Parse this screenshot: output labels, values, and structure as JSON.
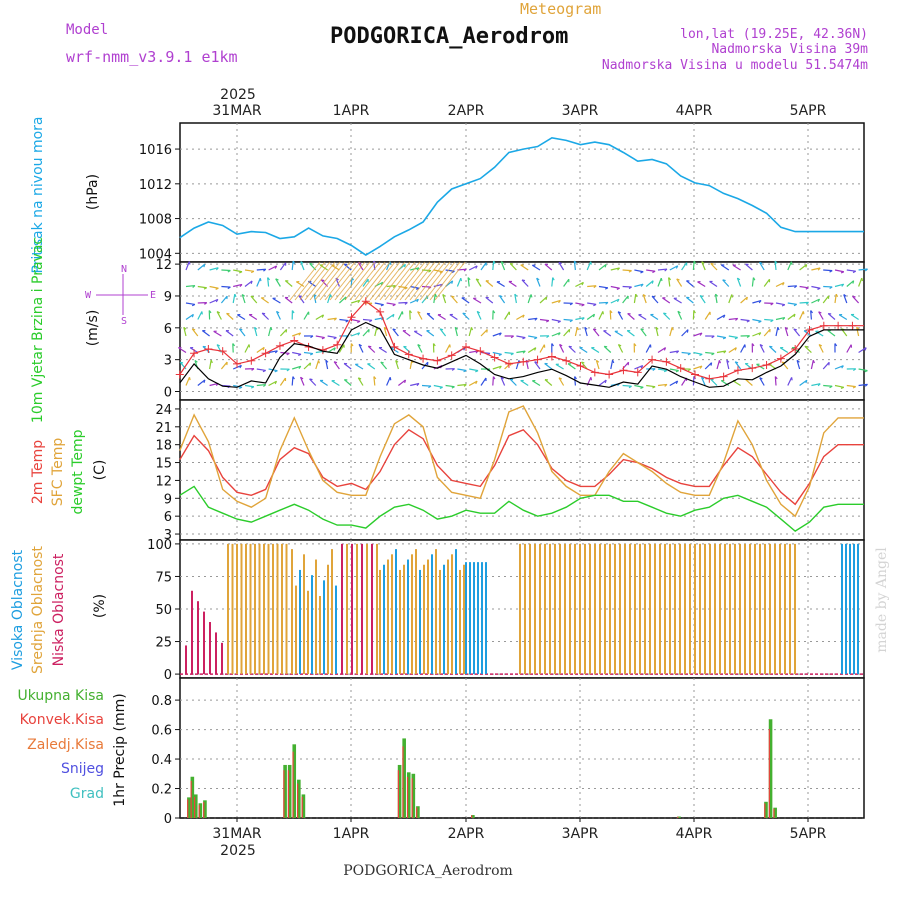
{
  "header": {
    "model_label": "Model",
    "model_name": "wrf-nmm_v3.9.1 e1km",
    "chart_type_label": "Meteogram",
    "station_name": "PODGORICA_Aerodrom",
    "coords": "lon,lat (19.25E, 42.36N)",
    "elevation": "Nadmorska Visina 39m",
    "model_elevation": "Nadmorska Visina u modelu 51.5474m",
    "footer_station": "PODGORICA_Aerodrom",
    "credit": "made by Angel"
  },
  "colors": {
    "pressure": "#1ba8e6",
    "wind_speed": "#000000",
    "gust": "#e8333a",
    "t2m": "#e8433d",
    "tsfc": "#e0a43a",
    "dewpoint": "#2bcc2b",
    "cloud_high": "#1e9ee0",
    "cloud_mid": "#e0a43a",
    "cloud_low": "#cc2060",
    "precip_total": "#44b030",
    "precip_conv": "#e8433d",
    "precip_frz": "#e87a3a",
    "precip_snow": "#5050e0",
    "precip_grad": "#40c0c0",
    "legend_purple": "#b040d0"
  },
  "chart_data": [
    {
      "type": "line",
      "panel": "pressure",
      "ylabel_left": "Pritisak na nivou mora",
      "ylabel_right": "(hPa)",
      "ylim": [
        1003,
        1019
      ],
      "yticks": [
        1004,
        1008,
        1012,
        1016
      ],
      "x_days": [
        0,
        0.125,
        0.25,
        0.375,
        0.5,
        0.625,
        0.75,
        0.875,
        1.0,
        1.125,
        1.25,
        1.375,
        1.5,
        1.625,
        1.75,
        1.875,
        2.0,
        2.125,
        2.25,
        2.375,
        2.5,
        2.625,
        2.75,
        2.875,
        3.0,
        3.125,
        3.25,
        3.375,
        3.5,
        3.625,
        3.75,
        3.875,
        4.0,
        4.125,
        4.25,
        4.375,
        4.5,
        4.625,
        4.75,
        4.875,
        5.0,
        5.125,
        5.25,
        5.375,
        5.5,
        5.625,
        5.75,
        5.875,
        6.0,
        6.125
      ],
      "series": [
        {
          "name": "",
          "values": [
            1005.8,
            1006.9,
            1007.6,
            1007.2,
            1006.2,
            1006.5,
            1006.4,
            1005.7,
            1005.9,
            1006.9,
            1006.0,
            1005.7,
            1004.9,
            1003.8,
            1004.8,
            1005.9,
            1006.7,
            1007.6,
            1009.9,
            1011.4,
            1012.0,
            1012.6,
            1013.9,
            1015.6,
            1016.0,
            1016.3,
            1017.3,
            1017.0,
            1016.5,
            1016.8,
            1016.5,
            1015.6,
            1014.6,
            1014.8,
            1014.3,
            1012.9,
            1012.1,
            1011.8,
            1010.9,
            1010.3,
            1009.5,
            1008.6,
            1007.0,
            1006.5,
            1006.5,
            1006.5,
            1006.5,
            1006.5,
            1006.5,
            1006.5
          ]
        }
      ]
    },
    {
      "type": "line",
      "panel": "wind",
      "ylabel_left": "10m Vjetar Brzina i Pravac",
      "ylabel_right": "(m/s)",
      "compass_labels": {
        "n": "N",
        "s": "S",
        "e": "E",
        "w": "W"
      },
      "ylim": [
        -0.8,
        12.2
      ],
      "yticks": [
        0,
        3,
        6,
        9,
        12
      ],
      "x_days": [
        0,
        0.125,
        0.25,
        0.375,
        0.5,
        0.625,
        0.75,
        0.875,
        1.0,
        1.125,
        1.25,
        1.375,
        1.5,
        1.625,
        1.75,
        1.875,
        2.0,
        2.125,
        2.25,
        2.375,
        2.5,
        2.625,
        2.75,
        2.875,
        3.0,
        3.125,
        3.25,
        3.375,
        3.5,
        3.625,
        3.75,
        3.875,
        4.0,
        4.125,
        4.25,
        4.375,
        4.5,
        4.625,
        4.75,
        4.875,
        5.0,
        5.125,
        5.25,
        5.375,
        5.5,
        5.625,
        5.75,
        5.875,
        6.0
      ],
      "series": [
        {
          "name": "",
          "values": [
            0.8,
            2.6,
            1.2,
            0.5,
            0.4,
            1.0,
            0.8,
            3.2,
            4.5,
            4.3,
            3.8,
            3.6,
            5.8,
            6.5,
            5.9,
            3.5,
            3.0,
            2.5,
            2.2,
            2.8,
            3.4,
            2.6,
            1.6,
            1.2,
            1.4,
            1.8,
            2.1,
            1.5,
            0.8,
            0.6,
            0.4,
            0.9,
            0.7,
            2.4,
            2.1,
            1.4,
            0.9,
            0.4,
            0.5,
            1.2,
            1.1,
            1.8,
            2.4,
            3.5,
            5.2,
            5.8,
            5.8,
            5.8,
            5.8
          ]
        },
        {
          "name": "",
          "values": [
            1.6,
            3.6,
            4.0,
            3.8,
            2.6,
            2.9,
            3.6,
            4.3,
            4.8,
            4.2,
            3.9,
            4.4,
            7.0,
            8.5,
            7.5,
            4.2,
            3.5,
            3.1,
            2.9,
            3.4,
            4.2,
            3.8,
            3.2,
            2.6,
            2.8,
            3.0,
            3.3,
            2.9,
            2.4,
            1.8,
            1.6,
            2.0,
            1.8,
            3.0,
            2.8,
            2.2,
            1.6,
            1.2,
            1.4,
            2.0,
            2.2,
            2.5,
            3.1,
            4.0,
            5.8,
            6.2,
            6.2,
            6.2,
            6.2
          ]
        }
      ]
    },
    {
      "type": "line",
      "panel": "temperature",
      "ylabel_left": [
        "2m Temp",
        "SFC Temp",
        "dewpt Temp"
      ],
      "ylabel_right": "(C)",
      "ylim": [
        2,
        25.5
      ],
      "yticks": [
        3,
        6,
        9,
        12,
        15,
        18,
        21,
        24
      ],
      "x_days": [
        0,
        0.125,
        0.25,
        0.375,
        0.5,
        0.625,
        0.75,
        0.875,
        1.0,
        1.125,
        1.25,
        1.375,
        1.5,
        1.625,
        1.75,
        1.875,
        2.0,
        2.125,
        2.25,
        2.375,
        2.5,
        2.625,
        2.75,
        2.875,
        3.0,
        3.125,
        3.25,
        3.375,
        3.5,
        3.625,
        3.75,
        3.875,
        4.0,
        4.125,
        4.25,
        4.375,
        4.5,
        4.625,
        4.75,
        4.875,
        5.0,
        5.125,
        5.25,
        5.375,
        5.5,
        5.625,
        5.75,
        5.875,
        6.0,
        6.125
      ],
      "series": [
        {
          "name": "",
          "values": [
            15.5,
            19.5,
            17.0,
            12.5,
            10.0,
            9.5,
            10.5,
            15.5,
            17.5,
            16.5,
            12.5,
            11.0,
            11.5,
            10.5,
            13.5,
            18.0,
            20.5,
            19.0,
            14.5,
            12.0,
            11.5,
            11.0,
            14.5,
            19.5,
            20.5,
            18.0,
            14.0,
            12.0,
            11.0,
            11.0,
            13.0,
            15.5,
            15.0,
            14.0,
            12.5,
            11.5,
            11.0,
            11.0,
            14.5,
            17.5,
            16.0,
            13.0,
            10.0,
            8.0,
            11.5,
            16.0,
            18.0,
            18.0,
            18.0,
            18.0
          ]
        },
        {
          "name": "",
          "values": [
            17.0,
            23.0,
            18.5,
            10.5,
            8.5,
            7.5,
            9.0,
            17.0,
            22.5,
            17.0,
            12.0,
            10.0,
            9.5,
            9.5,
            16.0,
            21.5,
            23.0,
            21.0,
            12.5,
            10.0,
            9.5,
            9.0,
            15.5,
            23.5,
            24.5,
            20.0,
            13.5,
            11.0,
            9.5,
            9.5,
            13.5,
            16.5,
            15.0,
            13.5,
            11.5,
            10.0,
            9.5,
            9.5,
            15.0,
            22.0,
            18.0,
            12.0,
            8.0,
            6.0,
            11.0,
            20.0,
            22.5,
            22.5,
            22.5,
            22.5
          ]
        },
        {
          "name": "",
          "values": [
            9.5,
            11.0,
            7.5,
            6.5,
            5.5,
            5.0,
            6.0,
            7.0,
            8.0,
            7.0,
            5.5,
            4.5,
            4.5,
            4.0,
            6.0,
            7.5,
            8.0,
            7.0,
            5.5,
            6.0,
            7.0,
            6.5,
            6.5,
            8.5,
            7.0,
            6.0,
            6.5,
            7.5,
            9.0,
            9.5,
            9.5,
            8.5,
            8.5,
            7.5,
            6.5,
            6.0,
            7.0,
            7.5,
            9.0,
            9.5,
            8.5,
            7.5,
            5.5,
            3.5,
            5.0,
            7.5,
            8.0,
            8.0,
            8.0,
            8.0
          ]
        }
      ]
    },
    {
      "type": "bar",
      "panel": "cloud",
      "ylabel_left": [
        "Visoka Oblacnost",
        "Srednja Oblacnost",
        "Niska Oblacnost"
      ],
      "ylabel_right": "(%)",
      "ylim": [
        -3,
        103
      ],
      "yticks": [
        0,
        25,
        50,
        75,
        100
      ]
    },
    {
      "type": "bar",
      "panel": "precip",
      "ylabel_right": "1hr Precip (mm)",
      "legend": [
        "Ukupna Kisa",
        "Konvek.Kisa",
        "Zaledj.Kisa",
        "Snijeg",
        "Grad"
      ],
      "ylim": [
        0,
        0.95
      ],
      "yticks": [
        0,
        0.2,
        0.4,
        0.6,
        0.8
      ],
      "x_days": [
        0.08,
        0.11,
        0.14,
        0.18,
        0.22,
        0.92,
        0.96,
        1.0,
        1.04,
        1.08,
        1.12,
        1.92,
        1.96,
        2.0,
        2.04,
        2.08,
        2.56,
        4.36,
        5.12,
        5.16,
        5.2
      ],
      "values": [
        0.14,
        0.28,
        0.16,
        0.1,
        0.12,
        0.36,
        0.36,
        0.5,
        0.26,
        0.16,
        0.0,
        0.36,
        0.54,
        0.31,
        0.3,
        0.08,
        0.02,
        0.01,
        0.11,
        0.67,
        0.07
      ]
    }
  ],
  "axis": {
    "year": "2025",
    "day_labels": [
      "31MAR",
      "1APR",
      "2APR",
      "3APR",
      "4APR",
      "5APR"
    ]
  }
}
